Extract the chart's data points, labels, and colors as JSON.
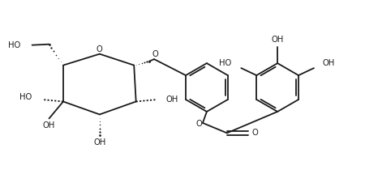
{
  "bg_color": "#ffffff",
  "line_color": "#1a1a1a",
  "line_width": 1.3,
  "font_size": 7.2,
  "fig_width": 4.5,
  "fig_height": 2.36,
  "dpi": 100,
  "xlim": [
    0.0,
    9.0
  ],
  "ylim": [
    0.0,
    4.7
  ]
}
